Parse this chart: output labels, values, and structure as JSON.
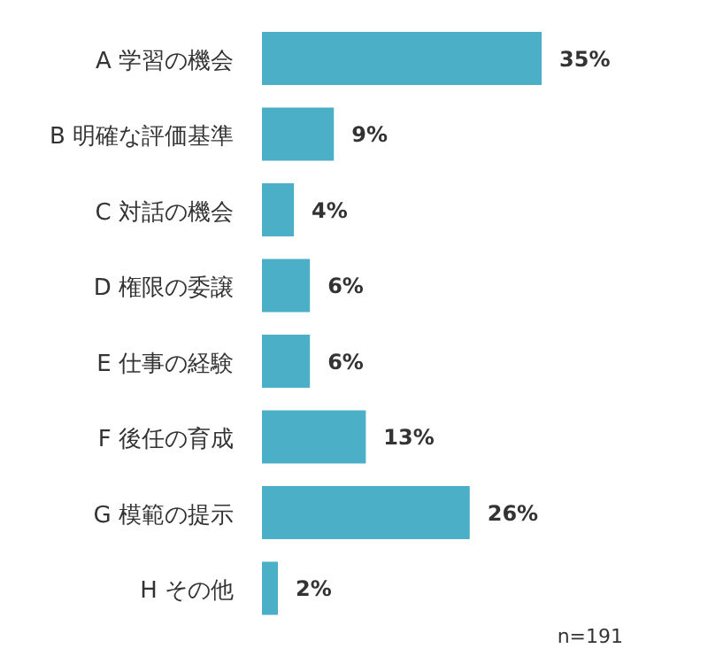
{
  "chart_data": {
    "type": "bar",
    "orientation": "horizontal",
    "categories": [
      "A 学習の機会",
      "B 明確な評価基準",
      "C 対話の機会",
      "D 権限の委譲",
      "E 仕事の経験",
      "F 後任の育成",
      "G 模範の提示",
      "H その他"
    ],
    "values": [
      35,
      9,
      4,
      6,
      6,
      13,
      26,
      2
    ],
    "value_labels": [
      "35%",
      "9%",
      "4%",
      "6%",
      "6%",
      "13%",
      "26%",
      "2%"
    ],
    "color": "#4bafc8",
    "grid": false,
    "legend": false,
    "annotations": [
      "n=191"
    ]
  }
}
